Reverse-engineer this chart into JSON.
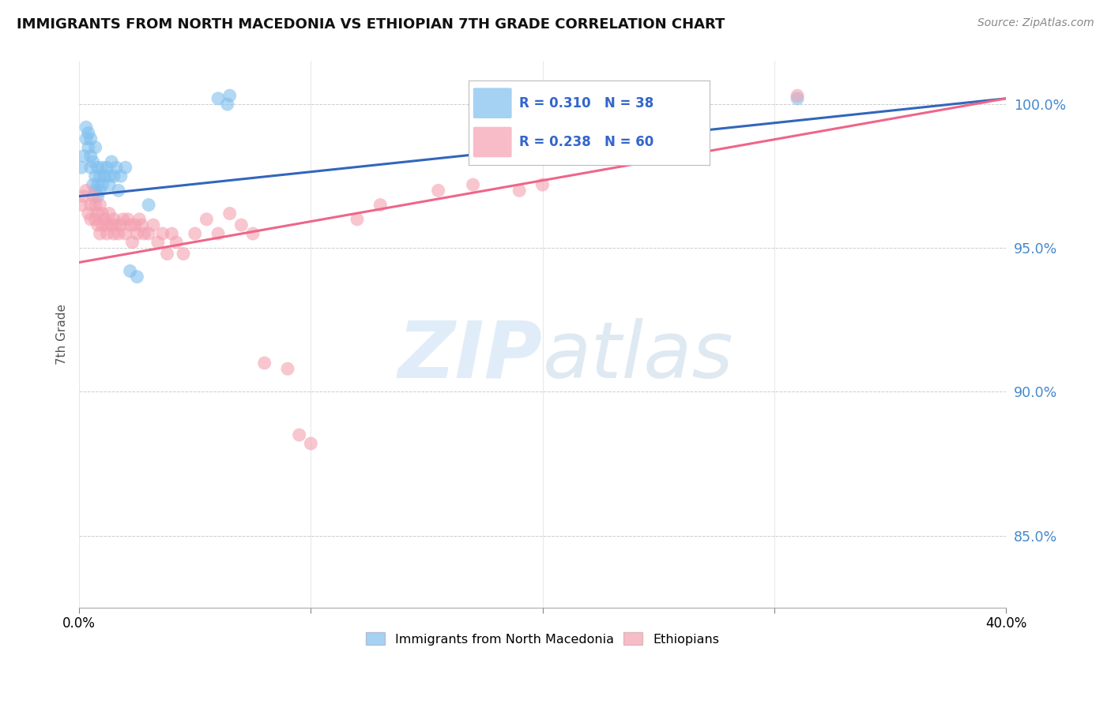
{
  "title": "IMMIGRANTS FROM NORTH MACEDONIA VS ETHIOPIAN 7TH GRADE CORRELATION CHART",
  "source": "Source: ZipAtlas.com",
  "ylabel": "7th Grade",
  "yticks": [
    85.0,
    90.0,
    95.0,
    100.0
  ],
  "ytick_labels": [
    "85.0%",
    "90.0%",
    "95.0%",
    "100.0%"
  ],
  "xlim": [
    0.0,
    0.4
  ],
  "ylim": [
    82.5,
    101.5
  ],
  "blue_R": 0.31,
  "blue_N": 38,
  "pink_R": 0.238,
  "pink_N": 60,
  "blue_color": "#7fbfee",
  "pink_color": "#f4a0b0",
  "blue_line_color": "#3366bb",
  "pink_line_color": "#ee6688",
  "blue_line_x0": 0.0,
  "blue_line_y0": 96.8,
  "blue_line_x1": 0.4,
  "blue_line_y1": 100.2,
  "pink_line_x0": 0.0,
  "pink_line_y0": 94.5,
  "pink_line_x1": 0.4,
  "pink_line_y1": 100.2,
  "blue_scatter_x": [
    0.001,
    0.002,
    0.003,
    0.003,
    0.004,
    0.004,
    0.005,
    0.005,
    0.005,
    0.006,
    0.006,
    0.007,
    0.007,
    0.007,
    0.008,
    0.008,
    0.008,
    0.009,
    0.009,
    0.01,
    0.01,
    0.011,
    0.012,
    0.013,
    0.013,
    0.014,
    0.015,
    0.016,
    0.017,
    0.018,
    0.02,
    0.022,
    0.025,
    0.03,
    0.06,
    0.064,
    0.065,
    0.31
  ],
  "blue_scatter_y": [
    97.8,
    98.2,
    99.2,
    98.8,
    99.0,
    98.5,
    98.8,
    98.2,
    97.8,
    98.0,
    97.2,
    98.5,
    97.5,
    97.0,
    97.8,
    97.2,
    96.8,
    97.5,
    97.0,
    97.8,
    97.2,
    97.5,
    97.8,
    97.5,
    97.2,
    98.0,
    97.5,
    97.8,
    97.0,
    97.5,
    97.8,
    94.2,
    94.0,
    96.5,
    100.2,
    100.0,
    100.3,
    100.2
  ],
  "pink_scatter_x": [
    0.001,
    0.002,
    0.003,
    0.004,
    0.005,
    0.005,
    0.006,
    0.007,
    0.007,
    0.008,
    0.008,
    0.009,
    0.009,
    0.01,
    0.01,
    0.011,
    0.012,
    0.012,
    0.013,
    0.014,
    0.015,
    0.015,
    0.016,
    0.017,
    0.018,
    0.019,
    0.02,
    0.021,
    0.022,
    0.023,
    0.024,
    0.025,
    0.026,
    0.027,
    0.028,
    0.03,
    0.032,
    0.034,
    0.036,
    0.038,
    0.04,
    0.042,
    0.045,
    0.05,
    0.055,
    0.06,
    0.065,
    0.07,
    0.075,
    0.08,
    0.09,
    0.095,
    0.1,
    0.12,
    0.13,
    0.155,
    0.17,
    0.19,
    0.2,
    0.31
  ],
  "pink_scatter_y": [
    96.5,
    96.8,
    97.0,
    96.2,
    96.5,
    96.0,
    96.8,
    96.5,
    96.0,
    96.2,
    95.8,
    96.5,
    95.5,
    96.2,
    95.8,
    96.0,
    95.8,
    95.5,
    96.2,
    95.8,
    95.5,
    96.0,
    95.8,
    95.5,
    95.8,
    96.0,
    95.5,
    96.0,
    95.8,
    95.2,
    95.8,
    95.5,
    96.0,
    95.8,
    95.5,
    95.5,
    95.8,
    95.2,
    95.5,
    94.8,
    95.5,
    95.2,
    94.8,
    95.5,
    96.0,
    95.5,
    96.2,
    95.8,
    95.5,
    91.0,
    90.8,
    88.5,
    88.2,
    96.0,
    96.5,
    97.0,
    97.2,
    97.0,
    97.2,
    100.3
  ],
  "watermark_zip": "ZIP",
  "watermark_atlas": "atlas",
  "legend_label_blue": "Immigrants from North Macedonia",
  "legend_label_pink": "Ethiopians"
}
